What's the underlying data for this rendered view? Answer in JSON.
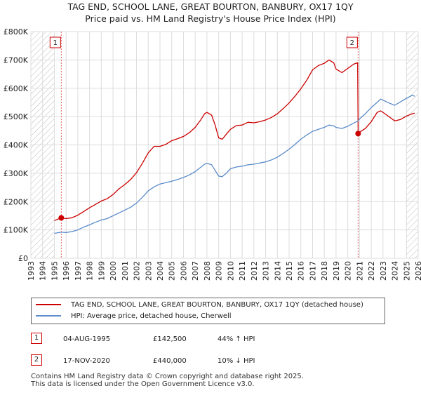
{
  "title_line1": "TAG END, SCHOOL LANE, GREAT BOURTON, BANBURY, OX17 1QY",
  "title_line2": "Price paid vs. HM Land Registry's House Price Index (HPI)",
  "colors": {
    "property": "#cc0000",
    "hpi": "#5b8bc9",
    "grid": "#dddddd",
    "marker_line": "#e06060",
    "hatch": "#bbbbbb"
  },
  "chart_data": {
    "type": "line",
    "xlim": [
      1993,
      2026
    ],
    "ylim": [
      0,
      800000
    ],
    "y_ticks": [
      {
        "value": 0,
        "label": "£0"
      },
      {
        "value": 100000,
        "label": "£100K"
      },
      {
        "value": 200000,
        "label": "£200K"
      },
      {
        "value": 300000,
        "label": "£300K"
      },
      {
        "value": 400000,
        "label": "£400K"
      },
      {
        "value": 500000,
        "label": "£500K"
      },
      {
        "value": 600000,
        "label": "£600K"
      },
      {
        "value": 700000,
        "label": "£700K"
      },
      {
        "value": 800000,
        "label": "£800K"
      }
    ],
    "x_ticks": [
      "1993",
      "1994",
      "1995",
      "1996",
      "1997",
      "1998",
      "1999",
      "2000",
      "2001",
      "2002",
      "2003",
      "2004",
      "2005",
      "2006",
      "2007",
      "2008",
      "2009",
      "2010",
      "2011",
      "2012",
      "2013",
      "2014",
      "2015",
      "2016",
      "2017",
      "2018",
      "2019",
      "2020",
      "2021",
      "2022",
      "2023",
      "2024",
      "2025",
      "2026"
    ],
    "hatched_ranges": [
      [
        1993,
        1995.0
      ],
      [
        2025.0,
        2026
      ]
    ],
    "series": [
      {
        "name": "TAG END, SCHOOL LANE, GREAT BOURTON, BANBURY, OX17 1QY (detached house)",
        "points": [
          [
            1995.0,
            133000
          ],
          [
            1995.59,
            142500
          ],
          [
            1996.0,
            140000
          ],
          [
            1996.5,
            143000
          ],
          [
            1997.0,
            152000
          ],
          [
            1997.5,
            165000
          ],
          [
            1998.0,
            178000
          ],
          [
            1998.5,
            190000
          ],
          [
            1999.0,
            202000
          ],
          [
            1999.5,
            210000
          ],
          [
            2000.0,
            225000
          ],
          [
            2000.5,
            245000
          ],
          [
            2001.0,
            260000
          ],
          [
            2001.5,
            278000
          ],
          [
            2002.0,
            302000
          ],
          [
            2002.5,
            335000
          ],
          [
            2003.0,
            372000
          ],
          [
            2003.5,
            395000
          ],
          [
            2004.0,
            395000
          ],
          [
            2004.5,
            402000
          ],
          [
            2005.0,
            415000
          ],
          [
            2005.5,
            422000
          ],
          [
            2006.0,
            430000
          ],
          [
            2006.5,
            443000
          ],
          [
            2007.0,
            462000
          ],
          [
            2007.5,
            490000
          ],
          [
            2007.8,
            510000
          ],
          [
            2008.0,
            515000
          ],
          [
            2008.4,
            505000
          ],
          [
            2008.7,
            470000
          ],
          [
            2009.0,
            425000
          ],
          [
            2009.3,
            420000
          ],
          [
            2009.7,
            440000
          ],
          [
            2010.0,
            455000
          ],
          [
            2010.5,
            468000
          ],
          [
            2011.0,
            470000
          ],
          [
            2011.5,
            480000
          ],
          [
            2012.0,
            478000
          ],
          [
            2012.5,
            482000
          ],
          [
            2013.0,
            488000
          ],
          [
            2013.5,
            497000
          ],
          [
            2014.0,
            510000
          ],
          [
            2014.5,
            528000
          ],
          [
            2015.0,
            548000
          ],
          [
            2015.5,
            572000
          ],
          [
            2016.0,
            598000
          ],
          [
            2016.5,
            628000
          ],
          [
            2017.0,
            665000
          ],
          [
            2017.5,
            680000
          ],
          [
            2018.0,
            688000
          ],
          [
            2018.4,
            700000
          ],
          [
            2018.8,
            690000
          ],
          [
            2019.0,
            668000
          ],
          [
            2019.5,
            655000
          ],
          [
            2020.0,
            670000
          ],
          [
            2020.5,
            685000
          ],
          [
            2020.84,
            690000
          ],
          [
            2020.88,
            440000
          ],
          [
            2021.0,
            445000
          ],
          [
            2021.5,
            458000
          ],
          [
            2022.0,
            482000
          ],
          [
            2022.5,
            515000
          ],
          [
            2022.8,
            520000
          ],
          [
            2023.0,
            515000
          ],
          [
            2023.5,
            500000
          ],
          [
            2024.0,
            485000
          ],
          [
            2024.5,
            490000
          ],
          [
            2025.0,
            502000
          ],
          [
            2025.5,
            510000
          ],
          [
            2025.7,
            512000
          ]
        ]
      },
      {
        "name": "HPI: Average price, detached house, Cherwell",
        "points": [
          [
            1995.0,
            88000
          ],
          [
            1995.59,
            92000
          ],
          [
            1996.0,
            91000
          ],
          [
            1996.5,
            94000
          ],
          [
            1997.0,
            100000
          ],
          [
            1997.5,
            110000
          ],
          [
            1998.0,
            118000
          ],
          [
            1998.5,
            127000
          ],
          [
            1999.0,
            135000
          ],
          [
            1999.5,
            140000
          ],
          [
            2000.0,
            150000
          ],
          [
            2000.5,
            160000
          ],
          [
            2001.0,
            170000
          ],
          [
            2001.5,
            180000
          ],
          [
            2002.0,
            195000
          ],
          [
            2002.5,
            215000
          ],
          [
            2003.0,
            238000
          ],
          [
            2003.5,
            252000
          ],
          [
            2004.0,
            262000
          ],
          [
            2004.5,
            267000
          ],
          [
            2005.0,
            272000
          ],
          [
            2005.5,
            278000
          ],
          [
            2006.0,
            285000
          ],
          [
            2006.5,
            294000
          ],
          [
            2007.0,
            306000
          ],
          [
            2007.5,
            322000
          ],
          [
            2007.8,
            332000
          ],
          [
            2008.0,
            335000
          ],
          [
            2008.4,
            330000
          ],
          [
            2008.7,
            310000
          ],
          [
            2009.0,
            290000
          ],
          [
            2009.3,
            288000
          ],
          [
            2009.7,
            302000
          ],
          [
            2010.0,
            316000
          ],
          [
            2010.5,
            322000
          ],
          [
            2011.0,
            325000
          ],
          [
            2011.5,
            330000
          ],
          [
            2012.0,
            332000
          ],
          [
            2012.5,
            336000
          ],
          [
            2013.0,
            340000
          ],
          [
            2013.5,
            347000
          ],
          [
            2014.0,
            357000
          ],
          [
            2014.5,
            370000
          ],
          [
            2015.0,
            385000
          ],
          [
            2015.5,
            402000
          ],
          [
            2016.0,
            420000
          ],
          [
            2016.5,
            435000
          ],
          [
            2017.0,
            448000
          ],
          [
            2017.5,
            455000
          ],
          [
            2018.0,
            462000
          ],
          [
            2018.4,
            470000
          ],
          [
            2018.8,
            467000
          ],
          [
            2019.0,
            462000
          ],
          [
            2019.5,
            458000
          ],
          [
            2020.0,
            466000
          ],
          [
            2020.5,
            477000
          ],
          [
            2020.84,
            484000
          ],
          [
            2021.0,
            492000
          ],
          [
            2021.5,
            510000
          ],
          [
            2022.0,
            532000
          ],
          [
            2022.5,
            550000
          ],
          [
            2022.8,
            562000
          ],
          [
            2023.0,
            558000
          ],
          [
            2023.5,
            548000
          ],
          [
            2024.0,
            540000
          ],
          [
            2024.5,
            552000
          ],
          [
            2025.0,
            565000
          ],
          [
            2025.5,
            575000
          ],
          [
            2025.7,
            572000
          ]
        ]
      }
    ],
    "sales": [
      {
        "label": "1",
        "x": 1995.59,
        "y": 142500
      },
      {
        "label": "2",
        "x": 2020.88,
        "y": 440000
      }
    ]
  },
  "legend": {
    "property_label": "TAG END, SCHOOL LANE, GREAT BOURTON, BANBURY, OX17 1QY (detached house)",
    "hpi_label": "HPI: Average price, detached house, Cherwell"
  },
  "sales_table": [
    {
      "num": "1",
      "date": "04-AUG-1995",
      "price": "£142,500",
      "hpi": "44% ↑ HPI"
    },
    {
      "num": "2",
      "date": "17-NOV-2020",
      "price": "£440,000",
      "hpi": "10% ↓ HPI"
    }
  ],
  "footer": {
    "line1": "Contains HM Land Registry data © Crown copyright and database right 2025.",
    "line2": "This data is licensed under the Open Government Licence v3.0."
  }
}
